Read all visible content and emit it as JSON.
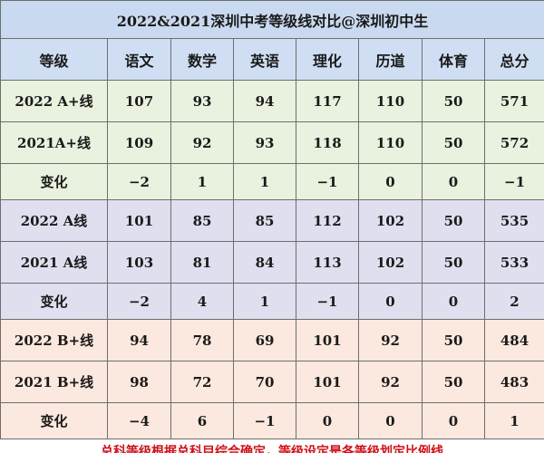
{
  "title": "2022&2021深圳中考等级线对比@深圳初中生",
  "headers": [
    "等级",
    "语文",
    "数学",
    "英语",
    "理化",
    "历道",
    "体育",
    "总分"
  ],
  "rows": [
    {
      "group": 1,
      "type": "r",
      "cells": [
        "2022 A+线",
        "107",
        "93",
        "94",
        "117",
        "110",
        "50",
        "571"
      ]
    },
    {
      "group": 1,
      "type": "r",
      "cells": [
        "2021A+线",
        "109",
        "92",
        "93",
        "118",
        "110",
        "50",
        "572"
      ]
    },
    {
      "group": 1,
      "type": "c",
      "cells": [
        "变化",
        "−2",
        "1",
        "1",
        "−1",
        "0",
        "0",
        "−1"
      ]
    },
    {
      "group": 2,
      "type": "r",
      "cells": [
        "2022 A线",
        "101",
        "85",
        "85",
        "112",
        "102",
        "50",
        "535"
      ]
    },
    {
      "group": 2,
      "type": "r",
      "cells": [
        "2021 A线",
        "103",
        "81",
        "84",
        "113",
        "102",
        "50",
        "533"
      ]
    },
    {
      "group": 2,
      "type": "c",
      "cells": [
        "变化",
        "−2",
        "4",
        "1",
        "−1",
        "0",
        "0",
        "2"
      ]
    },
    {
      "group": 3,
      "type": "r",
      "cells": [
        "2022 B+线",
        "94",
        "78",
        "69",
        "101",
        "92",
        "50",
        "484"
      ]
    },
    {
      "group": 3,
      "type": "r",
      "cells": [
        "2021 B+线",
        "98",
        "72",
        "70",
        "101",
        "92",
        "50",
        "483"
      ]
    },
    {
      "group": 3,
      "type": "c",
      "cells": [
        "变化",
        "−4",
        "6",
        "−1",
        "0",
        "0",
        "0",
        "1"
      ]
    }
  ],
  "note": "总科等级根据总科目综合确定，等级设定是各等级划定比例线",
  "colors": {
    "title_bg": "#c9d9ef",
    "a_plus_bg": "#e9f1df",
    "a_bg": "#dfdff0",
    "b_plus_bg": "#fbe8de",
    "note": "#d0101a"
  }
}
